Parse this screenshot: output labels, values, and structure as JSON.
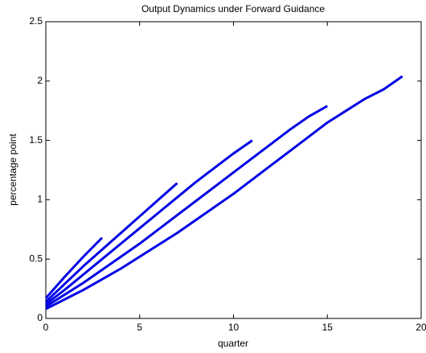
{
  "chart_data": {
    "type": "line",
    "title": "Output Dynamics under Forward Guidance",
    "xlabel": "quarter",
    "ylabel": "percentage point",
    "xlim": [
      0,
      20
    ],
    "xticks": [
      0,
      5,
      10,
      15,
      20
    ],
    "ylim": [
      0,
      2.5
    ],
    "yticks": [
      0,
      0.5,
      1,
      1.5,
      2,
      2.5
    ],
    "grid": false,
    "series": [
      {
        "color": "#0000e6",
        "x": [
          0,
          1,
          2,
          3
        ],
        "values": [
          0.17,
          0.35,
          0.52,
          0.68
        ]
      },
      {
        "color": "#0000e6",
        "x": [
          0,
          1,
          2,
          3,
          4,
          5,
          6,
          7
        ],
        "values": [
          0.14,
          0.29,
          0.44,
          0.58,
          0.72,
          0.86,
          1.0,
          1.14
        ]
      },
      {
        "color": "#0000e6",
        "x": [
          0,
          1,
          2,
          3,
          4,
          5,
          6,
          7,
          8,
          9,
          10,
          11
        ],
        "values": [
          0.12,
          0.24,
          0.37,
          0.5,
          0.63,
          0.76,
          0.89,
          1.02,
          1.15,
          1.27,
          1.39,
          1.5
        ]
      },
      {
        "color": "#0000e6",
        "x": [
          0,
          1,
          2,
          3,
          4,
          5,
          6,
          7,
          8,
          9,
          10,
          11,
          12,
          13,
          14,
          15
        ],
        "values": [
          0.1,
          0.2,
          0.3,
          0.41,
          0.52,
          0.63,
          0.75,
          0.87,
          0.99,
          1.11,
          1.23,
          1.35,
          1.47,
          1.59,
          1.7,
          1.79
        ]
      },
      {
        "color": "#0000e6",
        "x": [
          0,
          1,
          2,
          3,
          4,
          5,
          6,
          7,
          8,
          9,
          10,
          11,
          12,
          13,
          14,
          15,
          16,
          17,
          18,
          19
        ],
        "values": [
          0.08,
          0.16,
          0.24,
          0.33,
          0.42,
          0.52,
          0.62,
          0.72,
          0.83,
          0.94,
          1.05,
          1.17,
          1.29,
          1.41,
          1.53,
          1.65,
          1.75,
          1.85,
          1.93,
          2.04
        ]
      }
    ]
  }
}
